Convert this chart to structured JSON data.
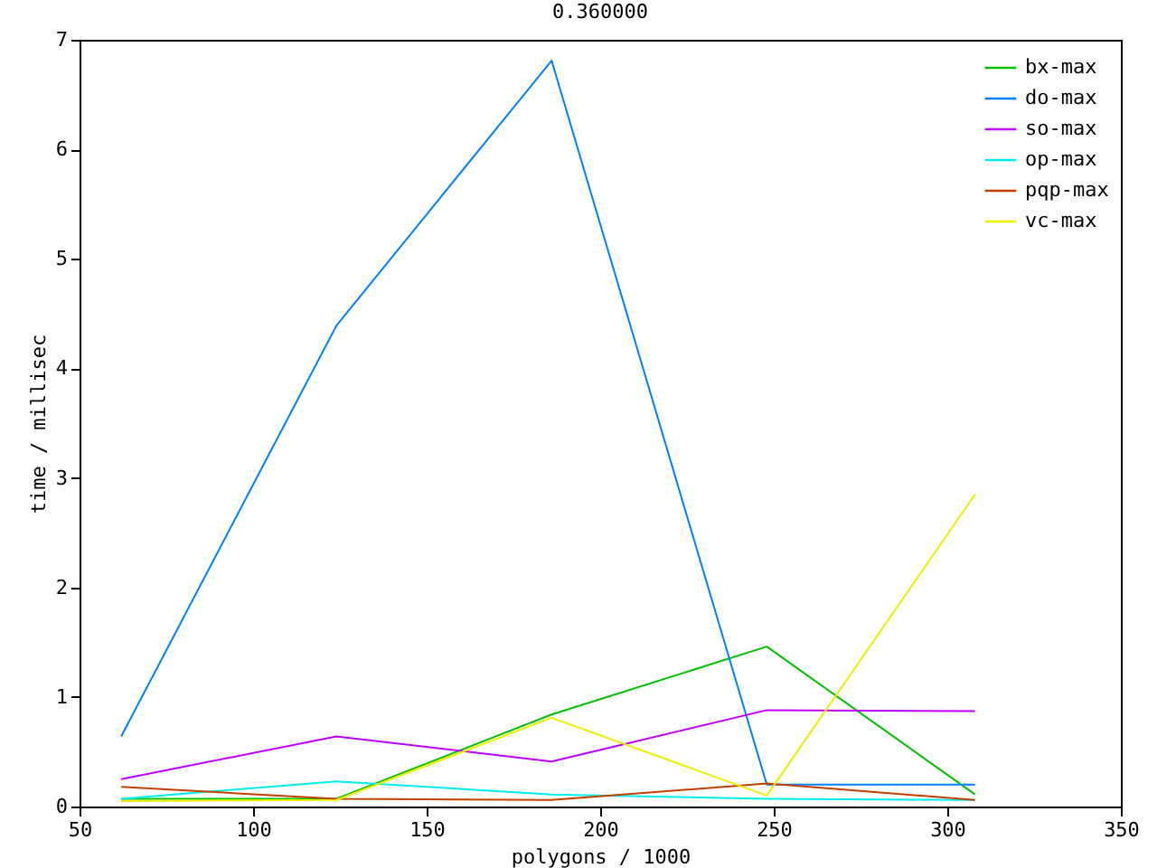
{
  "chart_data": {
    "type": "line",
    "title": "0.360000",
    "xlabel": "polygons / 1000",
    "ylabel": "time / millisec",
    "x": [
      62,
      124,
      186,
      248,
      308
    ],
    "xlim": [
      50,
      350
    ],
    "xticks": [
      50,
      100,
      150,
      200,
      250,
      300,
      350
    ],
    "ylim": [
      0,
      7
    ],
    "yticks": [
      0,
      1,
      2,
      3,
      4,
      5,
      6,
      7
    ],
    "grid": false,
    "legend": "top right",
    "line_style": "solid",
    "series": [
      {
        "name": "bx-max",
        "color": "#00c000",
        "values": [
          0.07,
          0.07,
          0.84,
          1.46,
          0.11
        ]
      },
      {
        "name": "do-max",
        "color": "#0080ff",
        "values": [
          0.64,
          4.39,
          6.81,
          0.2,
          0.2
        ]
      },
      {
        "name": "so-max",
        "color": "#c000ff",
        "values": [
          0.25,
          0.64,
          0.41,
          0.88,
          0.87
        ]
      },
      {
        "name": "op-max",
        "color": "#00eeee",
        "values": [
          0.07,
          0.23,
          0.11,
          0.07,
          0.06
        ]
      },
      {
        "name": "pqp-max",
        "color": "#c04000",
        "values": [
          0.18,
          0.07,
          0.06,
          0.21,
          0.06
        ]
      },
      {
        "name": "vc-max",
        "color": "#eeee00",
        "values": [
          0.05,
          0.06,
          0.81,
          0.1,
          2.85
        ]
      }
    ]
  }
}
